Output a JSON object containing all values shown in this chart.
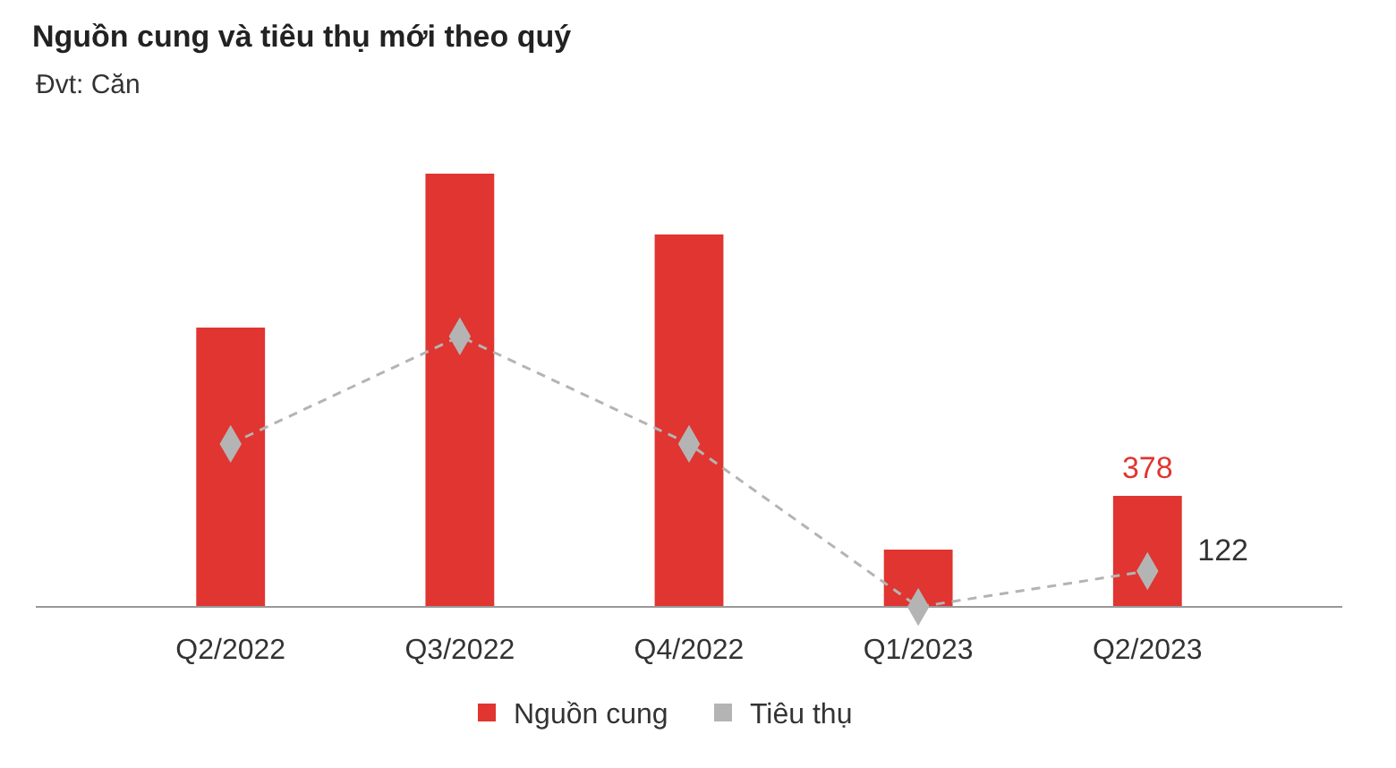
{
  "chart_data": {
    "type": "bar",
    "title": "Nguồn cung và tiêu thụ mới theo quý",
    "subtitle": "Đvt: Căn",
    "categories": [
      "Q2/2022",
      "Q3/2022",
      "Q4/2022",
      "Q1/2023",
      "Q2/2023"
    ],
    "series": [
      {
        "name": "Nguồn cung",
        "color": "#e03530",
        "values": [
          951,
          1475,
          1268,
          195,
          378
        ],
        "value_labels": [
          null,
          null,
          null,
          null,
          "378"
        ]
      },
      {
        "name": "Tiêu thụ",
        "type": "line",
        "color": "#b4b4b4",
        "values": [
          555,
          921,
          555,
          0,
          122
        ],
        "value_labels": [
          null,
          null,
          null,
          null,
          "122"
        ]
      }
    ],
    "marker": "diamond",
    "line_style": "dashed",
    "legend": "bottom"
  }
}
